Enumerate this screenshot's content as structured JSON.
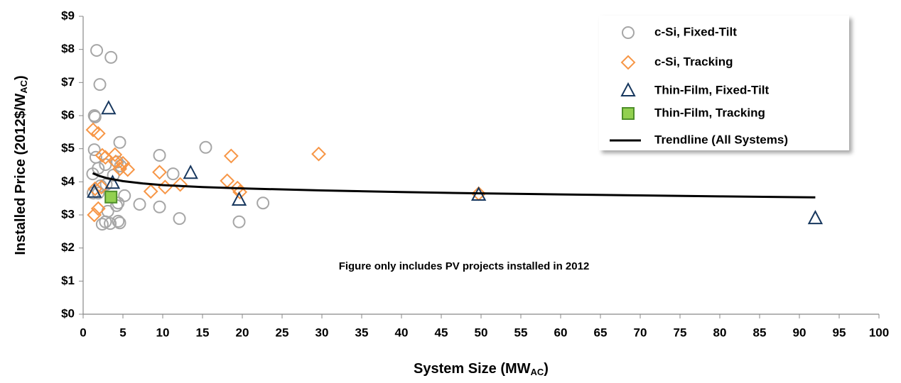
{
  "chart_data": {
    "type": "scatter",
    "xlabel": [
      "System Size (MW",
      "AC",
      ")"
    ],
    "ylabel": [
      "Installed Price (2012$/W",
      "AC",
      ")"
    ],
    "annotation": "Figure only includes PV projects installed in 2012",
    "xlim": [
      0,
      100
    ],
    "xticks": [
      0,
      5,
      10,
      15,
      20,
      25,
      30,
      35,
      40,
      45,
      50,
      55,
      60,
      65,
      70,
      75,
      80,
      85,
      90,
      95,
      100
    ],
    "ylim": [
      0,
      9
    ],
    "yticks": [
      {
        "value": 0,
        "label": "$0"
      },
      {
        "value": 1,
        "label": "$1"
      },
      {
        "value": 2,
        "label": "$2"
      },
      {
        "value": 3,
        "label": "$3"
      },
      {
        "value": 4,
        "label": "$4"
      },
      {
        "value": 5,
        "label": "$5"
      },
      {
        "value": 6,
        "label": "$6"
      },
      {
        "value": 7,
        "label": "$7"
      },
      {
        "value": 8,
        "label": "$8"
      },
      {
        "value": 9,
        "label": "$9"
      }
    ],
    "grid": false,
    "legend": "upper right",
    "series": [
      {
        "name": "c-Si, Fixed-Tilt",
        "marker": "circle",
        "color": "#a6a6a6",
        "x": [
          1.7,
          3.5,
          2.1,
          1.4,
          1.5,
          4.6,
          15.4,
          9.6,
          1.4,
          1.6,
          1.9,
          1.2,
          11.3,
          2.8,
          4.3,
          4.7,
          3.8,
          5.2,
          7.1,
          9.6,
          12.1,
          19.6,
          22.6,
          2.4,
          2.8,
          3.4,
          4.4,
          4.6,
          4.2,
          3.1,
          4.4,
          1.9,
          1.25,
          2.2,
          2.9
        ],
        "values": [
          7.97,
          7.76,
          6.94,
          6.0,
          5.96,
          5.19,
          5.04,
          4.8,
          4.97,
          4.74,
          4.41,
          4.24,
          4.24,
          4.52,
          4.6,
          4.48,
          4.2,
          3.58,
          3.32,
          3.24,
          2.89,
          2.79,
          3.36,
          2.72,
          2.79,
          2.74,
          2.81,
          2.76,
          3.28,
          3.11,
          3.36,
          3.66,
          3.66,
          3.88,
          3.92
        ]
      },
      {
        "name": "c-Si, Tracking",
        "marker": "diamond",
        "color": "#f79646",
        "x": [
          1.25,
          1.9,
          2.4,
          2.8,
          4.0,
          4.1,
          4.6,
          5.6,
          5.0,
          9.6,
          10.3,
          8.5,
          12.2,
          18.6,
          29.6,
          18.1,
          19.4,
          19.7,
          49.7,
          1.4,
          1.9,
          1.5,
          2.3
        ],
        "values": [
          5.57,
          5.46,
          4.8,
          4.74,
          4.82,
          4.6,
          4.39,
          4.37,
          4.56,
          4.29,
          3.84,
          3.71,
          3.92,
          4.78,
          4.84,
          4.03,
          3.81,
          3.69,
          3.64,
          3.0,
          3.19,
          3.79,
          3.84
        ]
      },
      {
        "name": "Thin-Film, Fixed-Tilt",
        "marker": "triangle",
        "color": "#17375e",
        "x": [
          3.2,
          13.5,
          3.7,
          1.4,
          19.6,
          49.7,
          92
        ],
        "values": [
          6.21,
          4.26,
          3.96,
          3.69,
          3.45,
          3.6,
          2.89
        ]
      },
      {
        "name": "Thin-Film, Tracking",
        "marker": "square",
        "color": "#4e8f2a",
        "fill": "#92d050",
        "x": [
          3.5
        ],
        "values": [
          3.54
        ]
      },
      {
        "name": "Trendline (All Systems)",
        "marker": "line",
        "color": "#000000",
        "x": [
          1.2,
          2,
          3,
          5,
          7.5,
          10,
          15,
          20,
          30,
          40,
          50,
          60,
          70,
          80,
          92
        ],
        "values": [
          4.26,
          4.18,
          4.11,
          4.02,
          3.95,
          3.9,
          3.84,
          3.8,
          3.74,
          3.69,
          3.65,
          3.62,
          3.59,
          3.56,
          3.53
        ]
      }
    ]
  }
}
